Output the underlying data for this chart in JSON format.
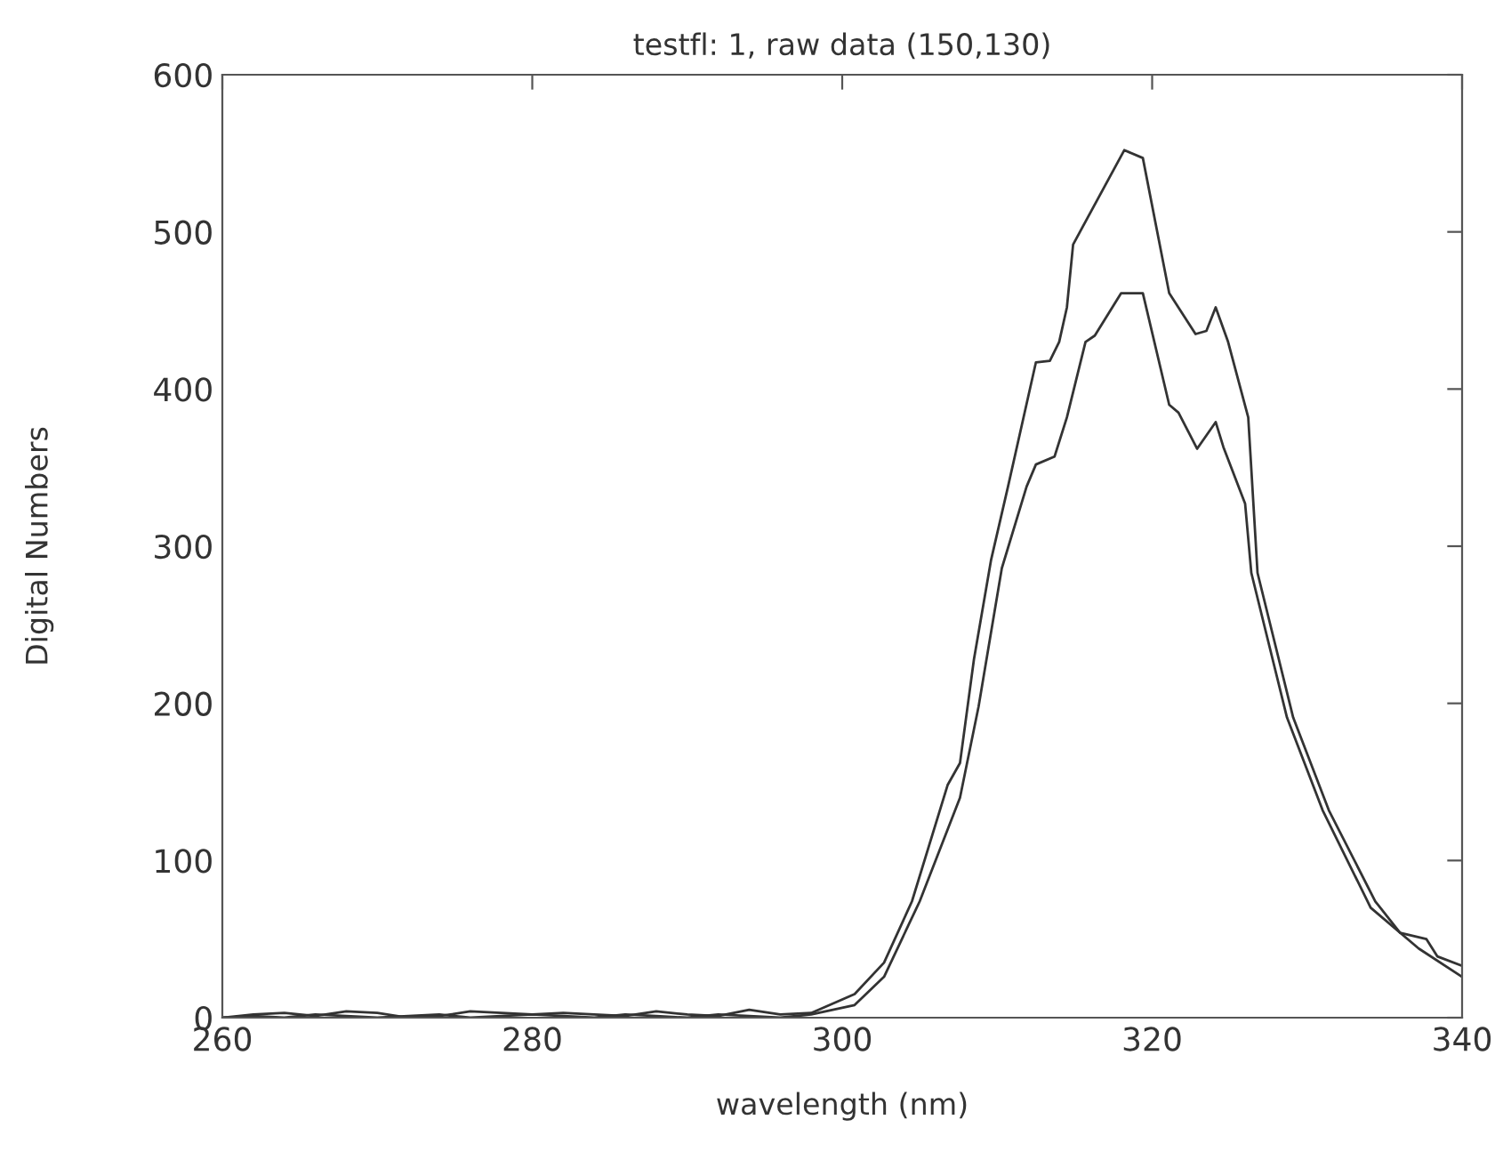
{
  "chart_data": {
    "type": "line",
    "title": "testfl: 1, raw data (150,130)",
    "xlabel": "wavelength (nm)",
    "ylabel": "Digital Numbers",
    "xlim": [
      260,
      340
    ],
    "xticks": [
      260,
      280,
      300,
      320,
      340
    ],
    "ylim": [
      0,
      600
    ],
    "yticks": [
      0,
      100,
      200,
      300,
      400,
      500,
      600
    ],
    "grid": false,
    "legend": false,
    "marker": "none",
    "line_style": "solid",
    "series": [
      {
        "color": "#333333",
        "x": [
          260,
          262,
          264,
          266,
          268,
          270,
          272,
          274,
          276,
          278,
          280,
          282,
          284,
          286,
          288,
          290,
          292,
          294,
          296,
          298,
          300.8,
          302.7,
          304.5,
          306.8,
          307.6,
          308.5,
          309.6,
          310.7,
          312.5,
          313.4,
          314.0,
          314.5,
          314.9,
          318.2,
          319.4,
          321.1,
          322.8,
          323.5,
          324.1,
          324.9,
          326.2,
          326.8,
          329.1,
          331.4,
          334.4,
          336.0,
          337.7,
          338.4,
          340
        ],
        "values": [
          0,
          2,
          3,
          1,
          4,
          3,
          0,
          1,
          4,
          3,
          2,
          3,
          2,
          1,
          4,
          2,
          1,
          5,
          2,
          3,
          15,
          35,
          74,
          148,
          162,
          228,
          291,
          338,
          417,
          418,
          430,
          452,
          492,
          552,
          547,
          461,
          435,
          437,
          452,
          430,
          382,
          283,
          191,
          132,
          74,
          54,
          50,
          39,
          33
        ]
      },
      {
        "color": "#333333",
        "x": [
          260,
          262,
          264,
          266,
          268,
          270,
          272,
          274,
          276,
          278,
          280,
          282,
          284,
          286,
          288,
          290,
          292,
          294,
          296,
          298,
          300.8,
          302.7,
          305.0,
          307.6,
          308.8,
          310.3,
          311.9,
          312.5,
          313.7,
          314.5,
          315.7,
          316.3,
          318.0,
          319.4,
          321.1,
          321.7,
          322.9,
          324.1,
          324.6,
          326.0,
          326.4,
          328.7,
          331.0,
          334.1,
          337.2,
          340
        ],
        "values": [
          0,
          1,
          0,
          2,
          1,
          0,
          1,
          2,
          0,
          1,
          2,
          1,
          0,
          2,
          1,
          0,
          2,
          1,
          0,
          2,
          8,
          26,
          74,
          140,
          198,
          286,
          338,
          352,
          357,
          382,
          430,
          434,
          461,
          461,
          390,
          385,
          362,
          379,
          363,
          327,
          283,
          191,
          132,
          70,
          44,
          26
        ]
      }
    ]
  }
}
